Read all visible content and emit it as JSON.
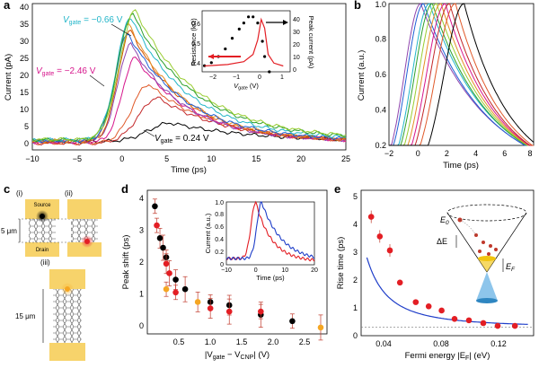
{
  "panels": {
    "a": {
      "label": "a",
      "xlabel": "Time (ps)",
      "ylabel": "Current (pA)",
      "xticks": [
        "−10",
        "−5",
        "0",
        "5",
        "10",
        "15",
        "20",
        "25"
      ],
      "yticks": [
        "0",
        "5",
        "10",
        "15",
        "20",
        "25",
        "30",
        "35",
        "40"
      ],
      "ann_top_prefix": "V",
      "ann_top_sub": "gate",
      "ann_top_val": " = −0.66 V",
      "ann_top_color": "#22b5c9",
      "ann_mid_prefix": "V",
      "ann_mid_sub": "gate",
      "ann_mid_val": " = −2.46 V",
      "ann_mid_color": "#d6168c",
      "ann_bot_prefix": "V",
      "ann_bot_sub": "gate",
      "ann_bot_val": " = 0.24 V",
      "ann_bot_color": "#000000",
      "inset": {
        "ylabel_left": "Resistance (kΩ)",
        "ylabel_right": "Peak current (pA)",
        "xlabel_prefix": "V",
        "xlabel_sub": "gate",
        "xlabel_unit": " (V)",
        "xticks": [
          "−2",
          "−1",
          "0",
          "1"
        ],
        "yticks_left": [
          "0.4",
          "0.5",
          "0.6"
        ],
        "yticks_right": [
          "0",
          "10",
          "20",
          "30",
          "40"
        ]
      }
    },
    "b": {
      "label": "b",
      "xlabel": "Time (ps)",
      "ylabel": "Current (a.u.)",
      "xticks": [
        "−2",
        "0",
        "2",
        "4",
        "6",
        "8"
      ],
      "yticks": [
        "0.2",
        "0.4",
        "0.6",
        "0.8",
        "1.0"
      ]
    },
    "c": {
      "label": "c",
      "sub_i": "(i)",
      "sub_ii": "(ii)",
      "sub_iii": "(iii)",
      "source": "Source",
      "drain": "Drain",
      "dim1": "5 μm",
      "dim2": "15 μm"
    },
    "d": {
      "label": "d",
      "ylabel": "Peak shift (ps)",
      "xlabel_main": "|V",
      "xlabel_sub1": "gate",
      "xlabel_mid": " − V",
      "xlabel_sub2": "CNP",
      "xlabel_end": "| (V)",
      "xticks": [
        "0.5",
        "1.0",
        "1.5",
        "2.0",
        "2.5"
      ],
      "yticks": [
        "0",
        "1",
        "2",
        "3",
        "4"
      ],
      "inset": {
        "ylabel": "Current (a.u.)",
        "xlabel": "Time (ps)",
        "xticks": [
          "−10",
          "0",
          "10",
          "20"
        ],
        "yticks": [
          "0",
          "0.2",
          "0.4",
          "0.6",
          "0.8",
          "1.0"
        ]
      }
    },
    "e": {
      "label": "e",
      "ylabel": "Rise time (ps)",
      "xlabel_main": "Fermi energy |E",
      "xlabel_sub": "F",
      "xlabel_end": "| (eV)",
      "xticks": [
        "0.04",
        "0.08",
        "0.12"
      ],
      "yticks": [
        "0",
        "1",
        "2",
        "3",
        "4",
        "5"
      ],
      "cone_e0": "E",
      "cone_e0_sub": "0",
      "cone_de": "ΔE",
      "cone_ef": "E",
      "cone_ef_sub": "F"
    }
  },
  "colors": {
    "red": "#e31e24",
    "orange": "#f5a623",
    "black": "#000000",
    "blue": "#1f3ec9",
    "errbar": "#c0392b"
  },
  "chart_data": [
    {
      "panel": "a",
      "type": "line",
      "xlim": [
        -10,
        25
      ],
      "ylim": [
        -1.5,
        42
      ],
      "series": [
        {
          "color": "#000000",
          "peak_x": 5.5,
          "peak_y": 6.5,
          "base": 1.0,
          "rise": 3.5,
          "decay": 9
        },
        {
          "color": "#c3282a",
          "peak_x": 4.0,
          "peak_y": 14,
          "base": 0.5,
          "rise": 3.0,
          "decay": 8
        },
        {
          "color": "#e05a2a",
          "peak_x": 3.0,
          "peak_y": 18,
          "base": 0.5,
          "rise": 2.6,
          "decay": 7.5
        },
        {
          "color": "#d6168c",
          "peak_x": 1.5,
          "peak_y": 26,
          "base": 0.8,
          "rise": 2.0,
          "decay": 6.5
        },
        {
          "color": "#8e44ad",
          "peak_x": 1.0,
          "peak_y": 30,
          "base": 1.0,
          "rise": 2.0,
          "decay": 6
        },
        {
          "color": "#d35400",
          "peak_x": 1.0,
          "peak_y": 34,
          "base": 1.0,
          "rise": 2.0,
          "decay": 6
        },
        {
          "color": "#e58e26",
          "peak_x": 0.8,
          "peak_y": 36,
          "base": 1.2,
          "rise": 2.0,
          "decay": 6
        },
        {
          "color": "#1e5fd6",
          "peak_x": 0.7,
          "peak_y": 33,
          "base": 1.2,
          "rise": 2.0,
          "decay": 6.5
        },
        {
          "color": "#22b5c9",
          "peak_x": 1.0,
          "peak_y": 38,
          "base": 1.5,
          "rise": 2.2,
          "decay": 6.5
        },
        {
          "color": "#2ca02c",
          "peak_x": 1.2,
          "peak_y": 39,
          "base": 1.5,
          "rise": 2.3,
          "decay": 7
        },
        {
          "color": "#9acd32",
          "peak_x": 1.5,
          "peak_y": 40,
          "base": 1.6,
          "rise": 2.4,
          "decay": 7
        }
      ]
    },
    {
      "panel": "a-inset",
      "type": "scatter+line",
      "xlim": [
        -2.6,
        1.2
      ],
      "resistance_points": [
        [
          -2.5,
          0.34
        ],
        [
          -2.2,
          0.36
        ],
        [
          -1.9,
          0.4
        ],
        [
          -1.6,
          0.45
        ],
        [
          -1.3,
          0.52
        ],
        [
          -1.0,
          0.58
        ],
        [
          -0.8,
          0.62
        ],
        [
          -0.6,
          0.66
        ],
        [
          -0.4,
          0.66
        ],
        [
          -0.2,
          0.62
        ],
        [
          0.0,
          0.5
        ],
        [
          0.1,
          0.4
        ],
        [
          0.3,
          0.3
        ]
      ],
      "peak_current": [
        [
          -2.5,
          4
        ],
        [
          -1.5,
          5
        ],
        [
          -0.8,
          7
        ],
        [
          -0.4,
          12
        ],
        [
          -0.2,
          22
        ],
        [
          -0.05,
          36
        ],
        [
          0.1,
          30
        ],
        [
          0.25,
          12
        ],
        [
          0.5,
          6
        ],
        [
          0.9,
          4
        ]
      ]
    },
    {
      "panel": "b",
      "type": "line",
      "xlim": [
        -2,
        8
      ],
      "ylim": [
        0.2,
        1.0
      ],
      "series": [
        {
          "color": "#8e44ad",
          "peak": 0.2
        },
        {
          "color": "#1e5fd6",
          "peak": 0.4
        },
        {
          "color": "#22b5c9",
          "peak": 0.8
        },
        {
          "color": "#2ca02c",
          "peak": 1.0
        },
        {
          "color": "#9acd32",
          "peak": 1.3
        },
        {
          "color": "#e58e26",
          "peak": 1.6
        },
        {
          "color": "#d6168c",
          "peak": 1.9
        },
        {
          "color": "#c3282a",
          "peak": 2.2
        },
        {
          "color": "#e05a2a",
          "peak": 2.6
        },
        {
          "color": "#000000",
          "peak": 3.2
        }
      ]
    },
    {
      "panel": "d",
      "type": "scatter",
      "xlim": [
        0,
        2.85
      ],
      "ylim": [
        -0.2,
        4.3
      ],
      "series": [
        {
          "name": "black",
          "color": "#000000",
          "points": [
            [
              0.12,
              3.8
            ],
            [
              0.2,
              2.8
            ],
            [
              0.25,
              2.5
            ],
            [
              0.3,
              2.2
            ],
            [
              0.45,
              1.5
            ],
            [
              0.6,
              1.2
            ],
            [
              1.0,
              0.8
            ],
            [
              1.3,
              0.7
            ],
            [
              1.8,
              0.4
            ],
            [
              2.3,
              0.2
            ]
          ]
        },
        {
          "name": "red",
          "color": "#e31e24",
          "points": [
            [
              0.15,
              3.2
            ],
            [
              0.3,
              2.0
            ],
            [
              0.35,
              1.7
            ],
            [
              0.45,
              1.1
            ],
            [
              1.0,
              0.6
            ],
            [
              1.3,
              0.5
            ],
            [
              1.8,
              0.5
            ]
          ]
        },
        {
          "name": "orange",
          "color": "#f5a623",
          "points": [
            [
              0.3,
              1.2
            ],
            [
              0.8,
              0.8
            ],
            [
              2.75,
              0.0
            ]
          ]
        }
      ]
    },
    {
      "panel": "d-inset",
      "type": "line",
      "xlim": [
        -10,
        20
      ],
      "ylim": [
        0,
        1.0
      ],
      "series": [
        {
          "name": "red",
          "color": "#e31e24",
          "peak": 0.0
        },
        {
          "name": "blue",
          "color": "#1f3ec9",
          "peak": 2.0
        }
      ]
    },
    {
      "panel": "e",
      "type": "scatter+fit",
      "xlim": [
        0.025,
        0.145
      ],
      "ylim": [
        0,
        5.2
      ],
      "points": [
        [
          0.032,
          4.25
        ],
        [
          0.038,
          3.55
        ],
        [
          0.045,
          3.05
        ],
        [
          0.052,
          1.9
        ],
        [
          0.063,
          1.2
        ],
        [
          0.072,
          1.05
        ],
        [
          0.081,
          0.9
        ],
        [
          0.09,
          0.6
        ],
        [
          0.1,
          0.55
        ],
        [
          0.11,
          0.45
        ],
        [
          0.12,
          0.35
        ],
        [
          0.132,
          0.35
        ]
      ],
      "baseline": 0.3
    }
  ]
}
